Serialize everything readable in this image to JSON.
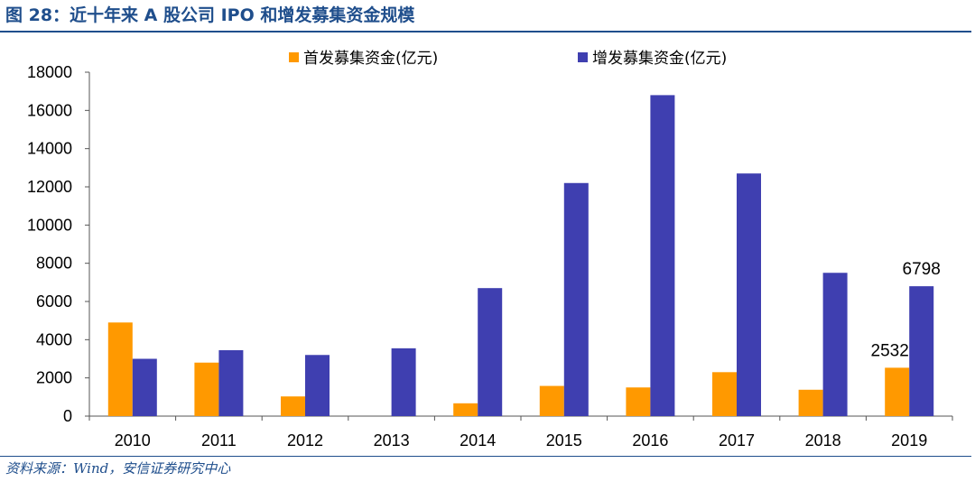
{
  "figure_title": "图 28：近十年来 A 股公司 IPO 和增发募集资金规模",
  "source": "资料来源：Wind，安信证券研究中心",
  "colors": {
    "title": "#1f4e8c",
    "ipo": "#ff9900",
    "seo": "#3f3fb0"
  },
  "chart_data": {
    "type": "bar",
    "categories": [
      "2010",
      "2011",
      "2012",
      "2013",
      "2014",
      "2015",
      "2016",
      "2017",
      "2018",
      "2019"
    ],
    "series": [
      {
        "name": "首发募集资金(亿元)",
        "values": [
          4900,
          2800,
          1030,
          0,
          670,
          1580,
          1500,
          2300,
          1380,
          2532
        ]
      },
      {
        "name": "增发募集资金(亿元)",
        "values": [
          3000,
          3450,
          3200,
          3550,
          6700,
          12200,
          16800,
          12700,
          7500,
          6798
        ]
      }
    ],
    "ylim": [
      0,
      18000
    ],
    "yticks": [
      "0",
      "2000",
      "4000",
      "6000",
      "8000",
      "10000",
      "12000",
      "14000",
      "16000",
      "18000"
    ],
    "data_labels": [
      {
        "series": 0,
        "category": "2019",
        "text": "2532"
      },
      {
        "series": 1,
        "category": "2019",
        "text": "6798"
      }
    ],
    "legend_position": "top",
    "grid": false
  }
}
